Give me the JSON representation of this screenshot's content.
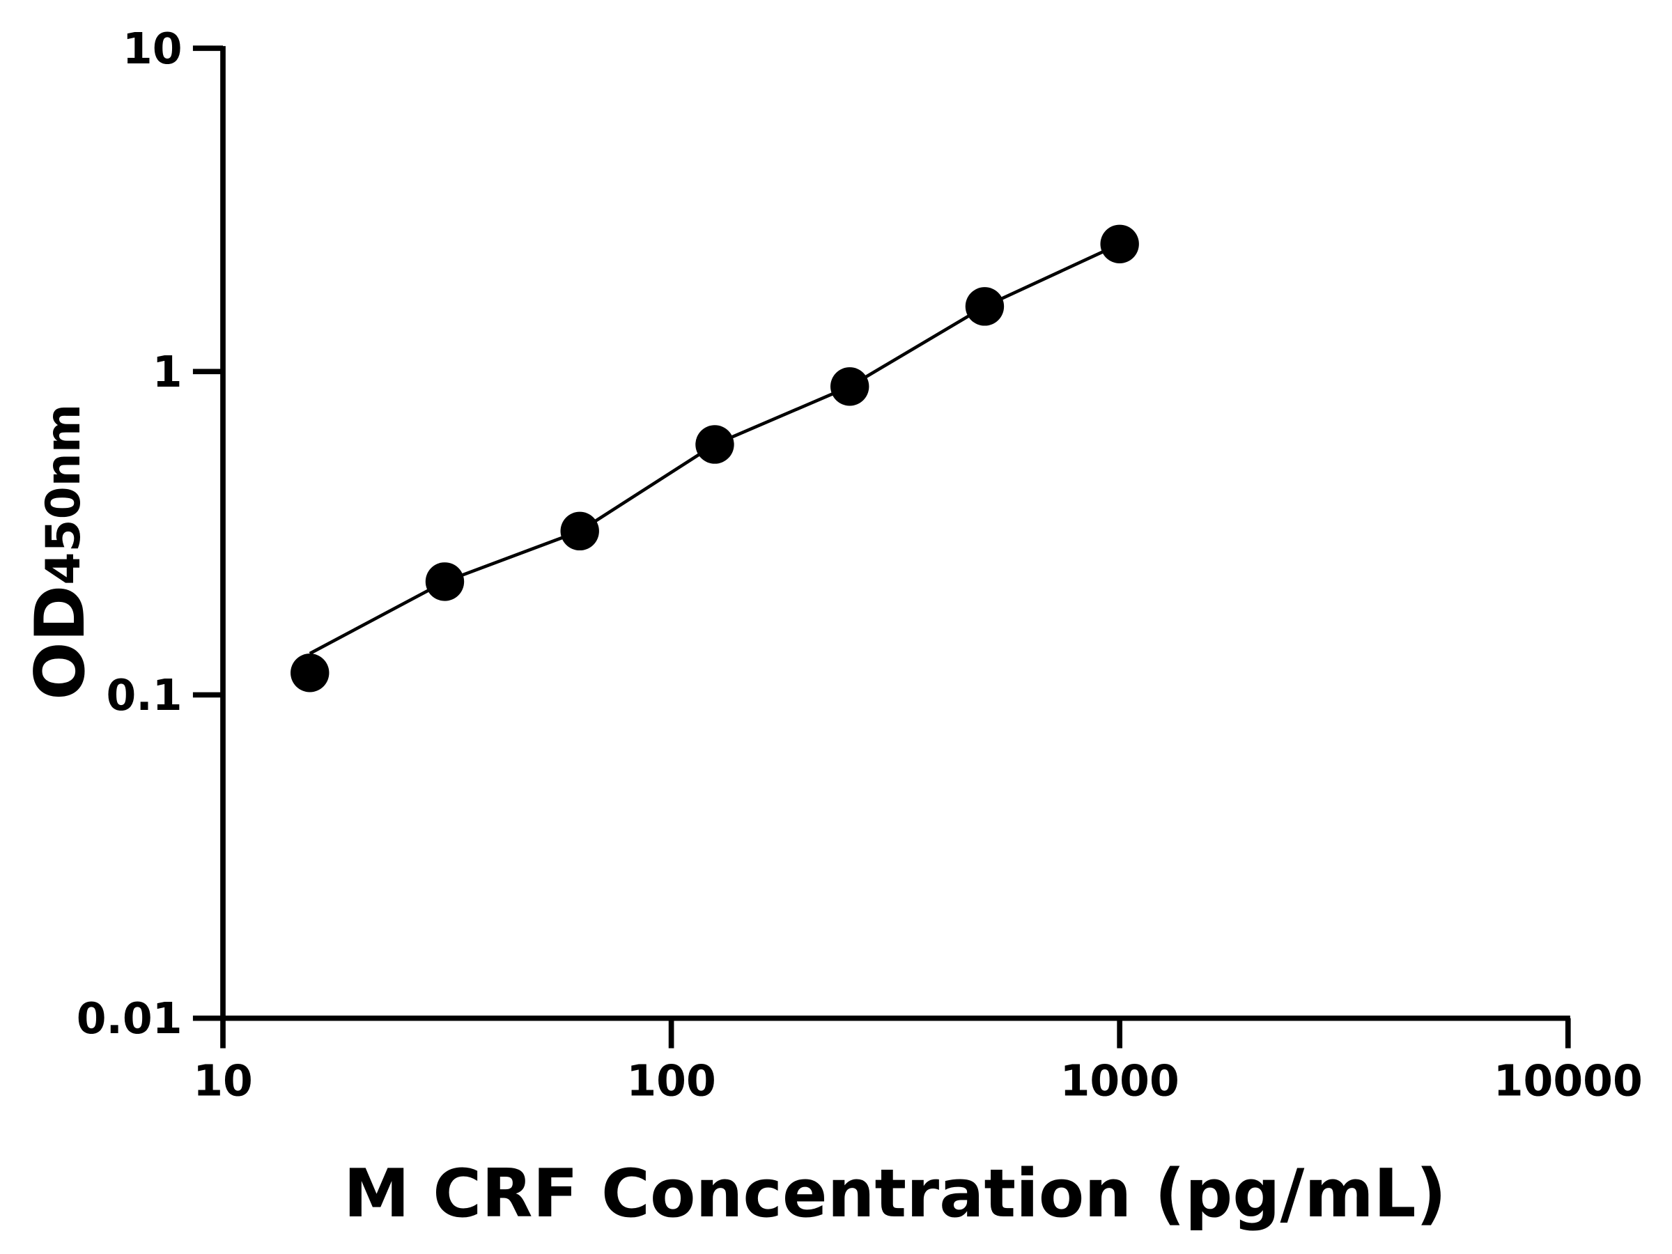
{
  "chart_data": {
    "type": "scatter",
    "title": "",
    "xlabel": "M CRF Concentration (pg/mL)",
    "ylabel_main": "OD",
    "ylabel_sub": "450nm",
    "x_scale": "log",
    "y_scale": "log",
    "xlim": [
      10,
      10000
    ],
    "ylim": [
      0.01,
      10
    ],
    "x_ticks": [
      "10",
      "100",
      "1000",
      "10000"
    ],
    "y_ticks": [
      "0.01",
      "0.1",
      "1",
      "10"
    ],
    "grid": false,
    "series": [
      {
        "x": [
          15.625,
          31.25,
          62.5,
          125,
          250,
          500,
          1000
        ],
        "y": [
          0.117,
          0.224,
          0.321,
          0.595,
          0.899,
          1.59,
          2.48
        ],
        "marker": "filled-circle",
        "fit_line": true,
        "color": "#000000"
      }
    ]
  }
}
